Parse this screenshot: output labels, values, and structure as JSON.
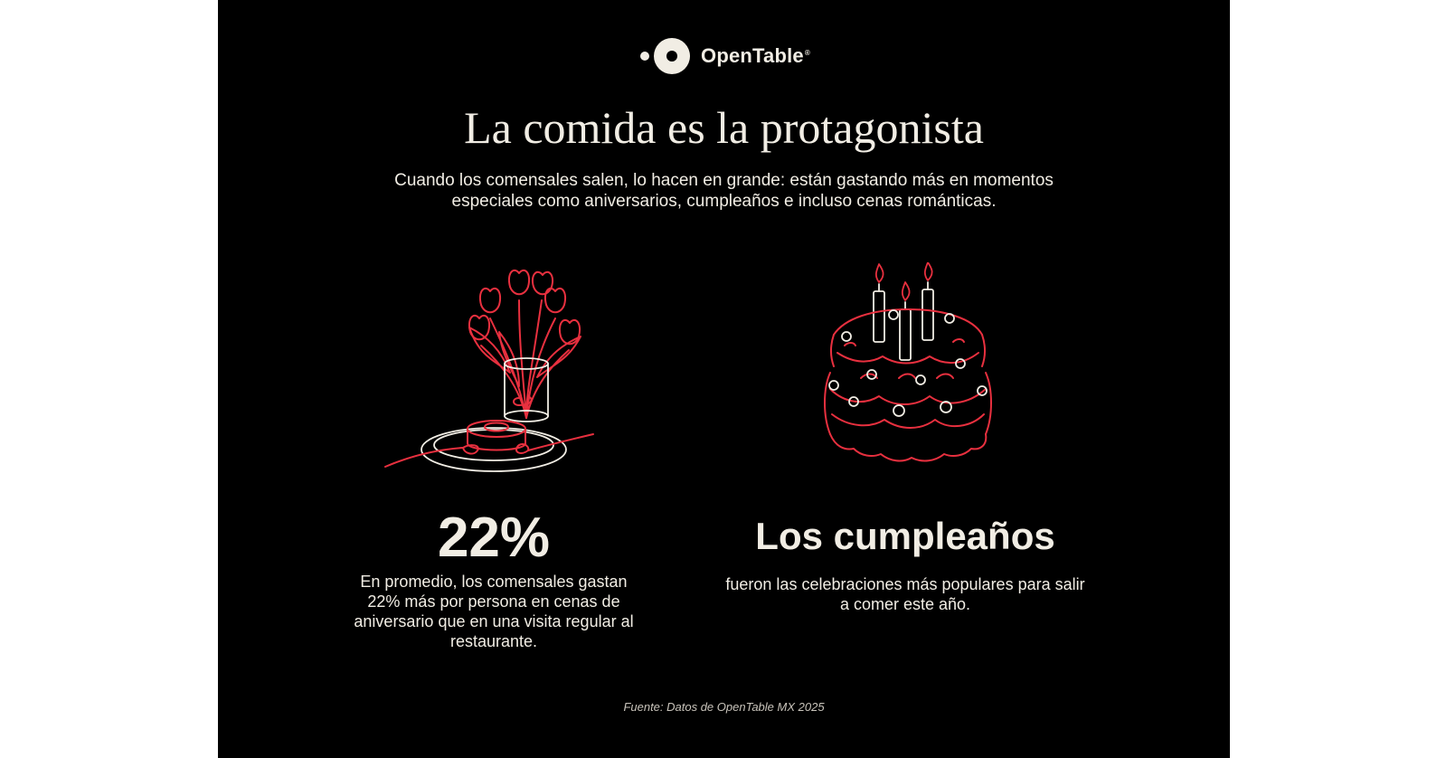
{
  "brand": {
    "name": "OpenTable",
    "registered_mark": "®",
    "logo_icon": "opentable-logo-icon"
  },
  "headline": "La comida es la protagonista",
  "intro": "Cuando los comensales salen, lo hacen en grande: están gastando más en momentos especiales como aniversarios, cumpleaños e incluso cenas románticas.",
  "left_block": {
    "illustration_icon": "tulips-vase-dessert-plate-icon",
    "stat": "22%",
    "description": "En promedio, los comensales gastan 22% más por persona en cenas de aniversario que en una visita regular al restaurante."
  },
  "right_block": {
    "illustration_icon": "birthday-cake-icon",
    "highlight": "Los cumpleaños",
    "description": "fueron las celebraciones más populares para salir a comer este año."
  },
  "source": "Fuente: Datos de OpenTable MX 2025",
  "colors": {
    "background": "#000000",
    "text": "#f1ede4",
    "accent_red": "#e8303f",
    "line_white": "#f1ede4",
    "outer_background": "#ffffff"
  }
}
